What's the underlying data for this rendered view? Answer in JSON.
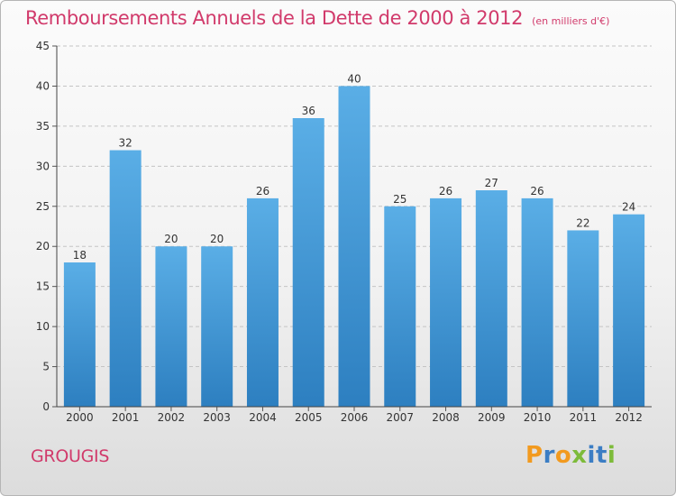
{
  "title": "Remboursements Annuels de la Dette de 2000 à 2012",
  "subtitle": "(en milliers d'€)",
  "commune": "GROUGIS",
  "brand": {
    "letters": [
      "P",
      "r",
      "o",
      "x",
      "i",
      "t",
      "i"
    ],
    "colors": [
      "#f29a1f",
      "#3b7dc4",
      "#f29a1f",
      "#7dbb3a",
      "#3b7dc4",
      "#3b7dc4",
      "#7dbb3a"
    ]
  },
  "colors": {
    "accent": "#d13a6b",
    "bar_top": "#5aaee6",
    "bar_bottom": "#2d7fc0"
  },
  "chart_data": {
    "type": "bar",
    "title": "Remboursements Annuels de la Dette de 2000 à 2012",
    "subtitle": "(en milliers d'€)",
    "categories": [
      "2000",
      "2001",
      "2002",
      "2003",
      "2004",
      "2005",
      "2006",
      "2007",
      "2008",
      "2009",
      "2010",
      "2011",
      "2012"
    ],
    "values": [
      18,
      32,
      20,
      20,
      26,
      36,
      40,
      25,
      26,
      27,
      26,
      22,
      24
    ],
    "ylim": [
      0,
      45
    ],
    "yticks": [
      0,
      5,
      10,
      15,
      20,
      25,
      30,
      35,
      40,
      45
    ],
    "grid": true,
    "data_labels": true
  }
}
